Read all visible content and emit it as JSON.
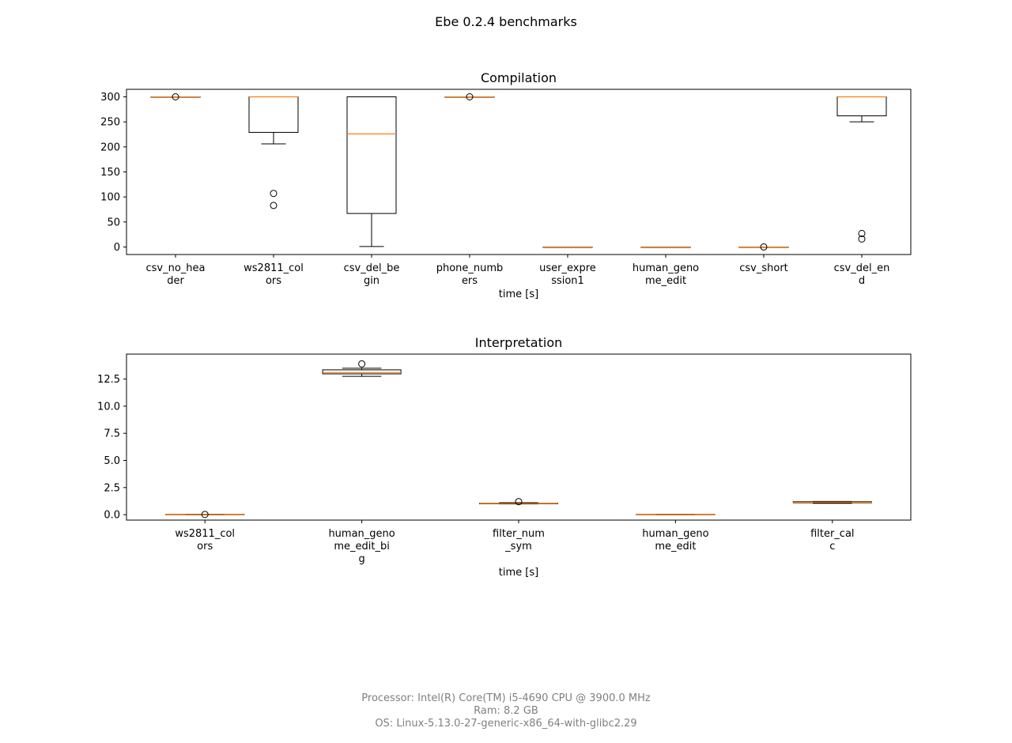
{
  "title": "Ebe 0.2.4 benchmarks",
  "colors": {
    "box": "#000000",
    "median": "#ff7f0e",
    "footer": "#808080"
  },
  "chart_data": [
    {
      "type": "box",
      "title": "Compilation",
      "xlabel": "time [s]",
      "ylabel": "",
      "ylim": [
        -15,
        315
      ],
      "yticks": [
        0,
        50,
        100,
        150,
        200,
        250,
        300
      ],
      "ytick_labels": [
        "0",
        "50",
        "100",
        "150",
        "200",
        "250",
        "300"
      ],
      "categories": [
        [
          "csv_no_hea",
          "der"
        ],
        [
          "ws2811_col",
          "ors"
        ],
        [
          "csv_del_be",
          "gin"
        ],
        [
          "phone_numb",
          "ers"
        ],
        [
          "user_expre",
          "ssion1"
        ],
        [
          "human_geno",
          "me_edit"
        ],
        [
          "csv_short"
        ],
        [
          "csv_del_en",
          "d"
        ]
      ],
      "boxes": [
        {
          "whislo": 300,
          "q1": 300,
          "med": 300,
          "q3": 300,
          "whishi": 300,
          "fliers": [
            300
          ]
        },
        {
          "whislo": 206,
          "q1": 229,
          "med": 300,
          "q3": 300,
          "whishi": 300,
          "fliers": [
            107,
            83
          ]
        },
        {
          "whislo": 1,
          "q1": 67,
          "med": 226,
          "q3": 300,
          "whishi": 300,
          "fliers": []
        },
        {
          "whislo": 300,
          "q1": 300,
          "med": 300,
          "q3": 300,
          "whishi": 300,
          "fliers": [
            300
          ]
        },
        {
          "whislo": 0.05,
          "q1": 0.06,
          "med": 0.07,
          "q3": 0.08,
          "whishi": 0.09,
          "fliers": []
        },
        {
          "whislo": 0.05,
          "q1": 0.06,
          "med": 0.07,
          "q3": 0.08,
          "whishi": 0.09,
          "fliers": []
        },
        {
          "whislo": 0.03,
          "q1": 0.04,
          "med": 0.05,
          "q3": 0.06,
          "whishi": 0.07,
          "fliers": [
            0.1
          ]
        },
        {
          "whislo": 250,
          "q1": 262,
          "med": 300,
          "q3": 300,
          "whishi": 300,
          "fliers": [
            27,
            16
          ]
        }
      ]
    },
    {
      "type": "box",
      "title": "Interpretation",
      "xlabel": "time [s]",
      "ylabel": "",
      "ylim": [
        -0.5,
        14.8
      ],
      "yticks": [
        0,
        2.5,
        5,
        7.5,
        10,
        12.5
      ],
      "ytick_labels": [
        "0.0",
        "2.5",
        "5.0",
        "7.5",
        "10.0",
        "12.5"
      ],
      "categories": [
        [
          "ws2811_col",
          "ors"
        ],
        [
          "human_geno",
          "me_edit_bi",
          "g"
        ],
        [
          "filter_num",
          "_sym"
        ],
        [
          "human_geno",
          "me_edit"
        ],
        [
          "filter_cal",
          "c"
        ]
      ],
      "boxes": [
        {
          "whislo": 0.0,
          "q1": 0.01,
          "med": 0.02,
          "q3": 0.03,
          "whishi": 0.04,
          "fliers": [
            0.02
          ]
        },
        {
          "whislo": 12.75,
          "q1": 12.98,
          "med": 13.1,
          "q3": 13.35,
          "whishi": 13.5,
          "fliers": [
            13.9
          ]
        },
        {
          "whislo": 0.98,
          "q1": 1.0,
          "med": 1.02,
          "q3": 1.05,
          "whishi": 1.1,
          "fliers": [
            1.2
          ]
        },
        {
          "whislo": 0.0,
          "q1": 0.01,
          "med": 0.02,
          "q3": 0.03,
          "whishi": 0.04,
          "fliers": []
        },
        {
          "whislo": 1.05,
          "q1": 1.1,
          "med": 1.15,
          "q3": 1.2,
          "whishi": 1.22,
          "fliers": []
        }
      ]
    }
  ],
  "footer": {
    "processor": "Processor: Intel(R) Core(TM) i5-4690 CPU @ 3900.0 MHz",
    "ram": "Ram: 8.2 GB",
    "os": "OS: Linux-5.13.0-27-generic-x86_64-with-glibc2.29"
  }
}
